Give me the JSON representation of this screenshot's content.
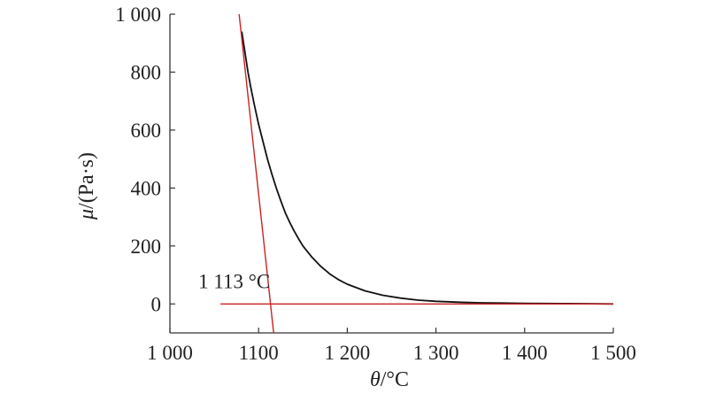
{
  "chart_data": {
    "type": "line",
    "xlabel_var": "θ",
    "xlabel_unit": "/°C",
    "ylabel_var": "μ",
    "ylabel_unit": "/(Pa·s)",
    "xlim": [
      1000,
      1500
    ],
    "ylim": [
      -100,
      1000
    ],
    "xticks": [
      {
        "value": 1000,
        "label": "1 000"
      },
      {
        "value": 1100,
        "label": "1100"
      },
      {
        "value": 1200,
        "label": "1 200"
      },
      {
        "value": 1300,
        "label": "1 300"
      },
      {
        "value": 1400,
        "label": "1 400"
      },
      {
        "value": 1500,
        "label": "1 500"
      }
    ],
    "yticks": [
      {
        "value": 0,
        "label": "0"
      },
      {
        "value": 200,
        "label": "200"
      },
      {
        "value": 400,
        "label": "400"
      },
      {
        "value": 600,
        "label": "600"
      },
      {
        "value": 800,
        "label": "800"
      },
      {
        "value": 1000,
        "label": "1 000"
      }
    ],
    "grid": false,
    "series": [
      {
        "color": "#111111",
        "x": [
          1081,
          1083,
          1085,
          1088,
          1091,
          1095,
          1100,
          1105,
          1110,
          1115,
          1120,
          1125,
          1130,
          1135,
          1140,
          1145,
          1150,
          1160,
          1170,
          1180,
          1190,
          1200,
          1220,
          1240,
          1260,
          1280,
          1300,
          1325,
          1350,
          1375,
          1400,
          1450,
          1500
        ],
        "y": [
          940,
          900,
          860,
          800,
          750,
          690,
          620,
          560,
          500,
          448,
          400,
          356,
          315,
          282,
          252,
          225,
          200,
          162,
          130,
          104,
          84,
          68,
          45,
          30,
          20,
          13,
          9,
          6,
          4,
          3,
          2,
          1,
          0
        ]
      },
      {
        "color": "#cc2222",
        "x": [
          1078,
          1117
        ],
        "y": [
          1000,
          -100
        ]
      },
      {
        "color": "#cc2222",
        "x": [
          1057,
          1500
        ],
        "y": [
          0,
          0
        ]
      }
    ],
    "annotations": [
      {
        "text": "1 113 °C",
        "x": 1032,
        "y": 55
      }
    ]
  }
}
